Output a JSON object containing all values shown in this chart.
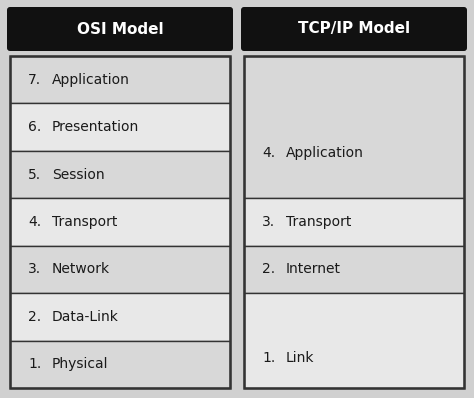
{
  "background_color": "#d0d0d0",
  "header_bg": "#111111",
  "header_text_color": "#ffffff",
  "cell_bg_light": "#d8d8d8",
  "cell_bg_lighter": "#e8e8e8",
  "cell_border_color": "#333333",
  "header_border_color": "#111111",
  "osi_title": "OSI Model",
  "tcp_title": "TCP/IP Model",
  "osi_layers": [
    {
      "num": "7.",
      "name": "Application"
    },
    {
      "num": "6.",
      "name": "Presentation"
    },
    {
      "num": "5.",
      "name": "Session"
    },
    {
      "num": "4.",
      "name": "Transport"
    },
    {
      "num": "3.",
      "name": "Network"
    },
    {
      "num": "2.",
      "name": "Data-Link"
    },
    {
      "num": "1.",
      "name": "Physical"
    }
  ],
  "tcp_layers": [
    {
      "num": "4.",
      "name": "Application",
      "span": 3
    },
    {
      "num": "3.",
      "name": "Transport",
      "span": 1
    },
    {
      "num": "2.",
      "name": "Internet",
      "span": 1
    },
    {
      "num": "1.",
      "name": "Link",
      "span": 2
    }
  ],
  "fig_width": 4.74,
  "fig_height": 3.98,
  "dpi": 100
}
